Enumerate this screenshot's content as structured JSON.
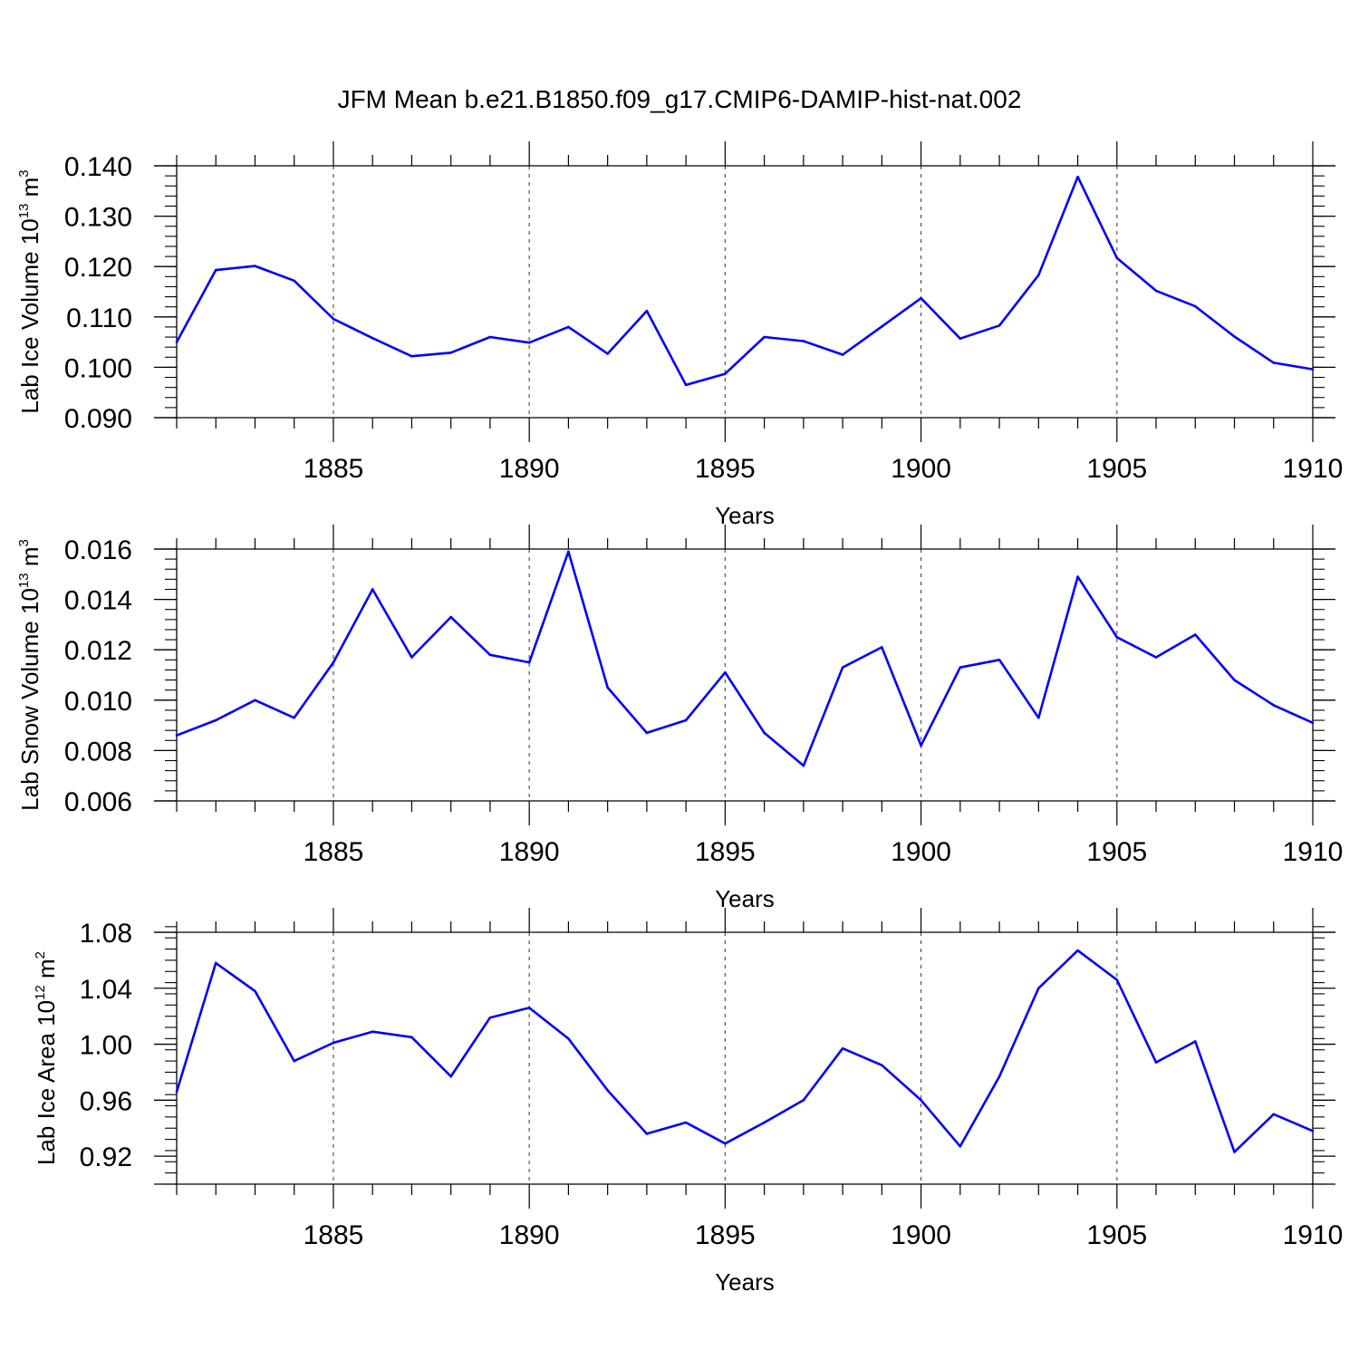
{
  "title": "JFM Mean b.e21.B1850.f09_g17.CMIP6-DAMIP-hist-nat.002",
  "colors": {
    "line": "#0000ff",
    "axis": "#000000",
    "grid": "#555555",
    "background": "#ffffff"
  },
  "chart_data": [
    {
      "type": "line",
      "xlabel": "Years",
      "ylabel": {
        "text": "Lab Ice Volume 10",
        "exponent": "13",
        "unit": " m",
        "unit_exponent": "3"
      },
      "xlim": [
        1881,
        1910
      ],
      "ylim": [
        0.09,
        0.14
      ],
      "xticks": [
        1885,
        1890,
        1895,
        1900,
        1905,
        1910
      ],
      "yticks": [
        "0.090",
        "0.100",
        "0.110",
        "0.120",
        "0.130",
        "0.140"
      ],
      "grid": "vertical dashed at major x ticks",
      "x": [
        1881,
        1882,
        1883,
        1884,
        1885,
        1886,
        1887,
        1888,
        1889,
        1890,
        1891,
        1892,
        1893,
        1894,
        1895,
        1896,
        1897,
        1898,
        1899,
        1900,
        1901,
        1902,
        1903,
        1904,
        1905,
        1906,
        1907,
        1908,
        1909,
        1910
      ],
      "values": [
        0.105,
        0.1193,
        0.1201,
        0.1172,
        0.1096,
        0.1058,
        0.1022,
        0.1029,
        0.106,
        0.1049,
        0.108,
        0.1027,
        0.1112,
        0.0965,
        0.0987,
        0.106,
        0.1052,
        0.1025,
        0.1081,
        0.1137,
        0.1057,
        0.1083,
        0.1183,
        0.1378,
        0.1217,
        0.1152,
        0.1121,
        0.1061,
        0.1009,
        0.0996
      ]
    },
    {
      "type": "line",
      "xlabel": "Years",
      "ylabel": {
        "text": "Lab Snow Volume 10",
        "exponent": "13",
        "unit": " m",
        "unit_exponent": "3"
      },
      "xlim": [
        1881,
        1910
      ],
      "ylim": [
        0.006,
        0.016
      ],
      "xticks": [
        1885,
        1890,
        1895,
        1900,
        1905,
        1910
      ],
      "yticks": [
        "0.006",
        "0.008",
        "0.010",
        "0.012",
        "0.014",
        "0.016"
      ],
      "grid": "vertical dashed at major x ticks",
      "x": [
        1881,
        1882,
        1883,
        1884,
        1885,
        1886,
        1887,
        1888,
        1889,
        1890,
        1891,
        1892,
        1893,
        1894,
        1895,
        1896,
        1897,
        1898,
        1899,
        1900,
        1901,
        1902,
        1903,
        1904,
        1905,
        1906,
        1907,
        1908,
        1909,
        1910
      ],
      "values": [
        0.0086,
        0.0092,
        0.01,
        0.0093,
        0.0115,
        0.0144,
        0.0117,
        0.0133,
        0.0118,
        0.0115,
        0.0159,
        0.0105,
        0.0087,
        0.0092,
        0.0111,
        0.0087,
        0.0074,
        0.0113,
        0.0121,
        0.0082,
        0.0113,
        0.0116,
        0.0093,
        0.0149,
        0.0125,
        0.0117,
        0.0126,
        0.0108,
        0.0098,
        0.0091
      ]
    },
    {
      "type": "line",
      "xlabel": "Years",
      "ylabel": {
        "text": "Lab Ice Area 10",
        "exponent": "12",
        "unit": " m",
        "unit_exponent": "2"
      },
      "xlim": [
        1881,
        1910
      ],
      "ylim": [
        0.9,
        1.08
      ],
      "xticks": [
        1885,
        1890,
        1895,
        1900,
        1905,
        1910
      ],
      "yticks": [
        "0.92",
        "0.96",
        "1.00",
        "1.04",
        "1.08"
      ],
      "grid": "vertical dashed at major x ticks",
      "x": [
        1881,
        1882,
        1883,
        1884,
        1885,
        1886,
        1887,
        1888,
        1889,
        1890,
        1891,
        1892,
        1893,
        1894,
        1895,
        1896,
        1897,
        1898,
        1899,
        1900,
        1901,
        1902,
        1903,
        1904,
        1905,
        1906,
        1907,
        1908,
        1909,
        1910
      ],
      "values": [
        0.966,
        1.058,
        1.038,
        0.988,
        1.001,
        1.009,
        1.005,
        0.977,
        1.019,
        1.026,
        1.004,
        0.967,
        0.936,
        0.944,
        0.929,
        0.944,
        0.96,
        0.997,
        0.985,
        0.96,
        0.927,
        0.977,
        1.04,
        1.067,
        1.046,
        0.987,
        1.002,
        0.923,
        0.95,
        0.938
      ]
    }
  ]
}
